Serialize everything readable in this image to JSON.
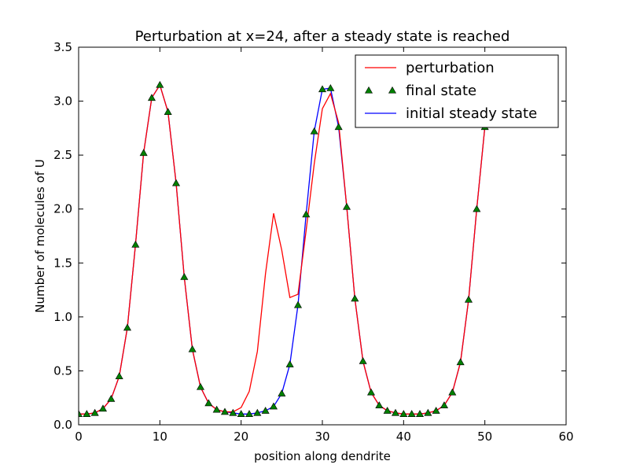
{
  "chart_data": {
    "type": "line",
    "title": "Perturbation at x=24, after a steady state is reached",
    "xlabel": "position along dendrite",
    "ylabel": "Number of molecules of U",
    "xlim": [
      0,
      60
    ],
    "ylim": [
      0.0,
      3.5
    ],
    "x_ticks": [
      "0",
      "10",
      "20",
      "30",
      "40",
      "50",
      "60"
    ],
    "y_ticks": [
      "0.0",
      "0.5",
      "1.0",
      "1.5",
      "2.0",
      "2.5",
      "3.0",
      "3.5"
    ],
    "grid": false,
    "legend_position": "top-right",
    "x": [
      0,
      1,
      2,
      3,
      4,
      5,
      6,
      7,
      8,
      9,
      10,
      11,
      12,
      13,
      14,
      15,
      16,
      17,
      18,
      19,
      20,
      21,
      22,
      23,
      24,
      25,
      26,
      27,
      28,
      29,
      30,
      31,
      32,
      33,
      34,
      35,
      36,
      37,
      38,
      39,
      40,
      41,
      42,
      43,
      44,
      45,
      46,
      47,
      48,
      49,
      50
    ],
    "series": [
      {
        "name": "perturbation",
        "style": "line",
        "color": "#ff0000",
        "values": [
          0.1,
          0.1,
          0.11,
          0.15,
          0.24,
          0.45,
          0.9,
          1.67,
          2.52,
          3.03,
          3.15,
          2.9,
          2.24,
          1.37,
          0.7,
          0.35,
          0.2,
          0.14,
          0.12,
          0.12,
          0.16,
          0.31,
          0.68,
          1.4,
          1.96,
          1.62,
          1.18,
          1.21,
          1.8,
          2.42,
          2.93,
          3.07,
          2.8,
          2.02,
          1.17,
          0.59,
          0.3,
          0.18,
          0.13,
          0.11,
          0.1,
          0.1,
          0.1,
          0.11,
          0.13,
          0.18,
          0.3,
          0.58,
          1.16,
          2.0,
          2.76
        ]
      },
      {
        "name": "final state",
        "style": "markers",
        "color": "#008000",
        "values": [
          0.1,
          0.1,
          0.11,
          0.15,
          0.24,
          0.45,
          0.9,
          1.67,
          2.52,
          3.03,
          3.15,
          2.9,
          2.24,
          1.37,
          0.7,
          0.35,
          0.2,
          0.14,
          0.12,
          0.11,
          0.1,
          0.1,
          0.11,
          0.13,
          0.17,
          0.29,
          0.56,
          1.11,
          1.95,
          2.72,
          3.11,
          3.12,
          2.76,
          2.02,
          1.17,
          0.59,
          0.3,
          0.18,
          0.13,
          0.11,
          0.1,
          0.1,
          0.1,
          0.11,
          0.13,
          0.18,
          0.3,
          0.58,
          1.16,
          2.0,
          2.76
        ]
      },
      {
        "name": "initial steady state",
        "style": "line",
        "color": "#0000ff",
        "values": [
          0.1,
          0.1,
          0.11,
          0.15,
          0.24,
          0.45,
          0.9,
          1.67,
          2.52,
          3.03,
          3.15,
          2.9,
          2.24,
          1.37,
          0.7,
          0.35,
          0.2,
          0.14,
          0.12,
          0.11,
          0.1,
          0.1,
          0.11,
          0.13,
          0.17,
          0.29,
          0.56,
          1.11,
          1.95,
          2.72,
          3.11,
          3.12,
          2.76,
          2.02,
          1.17,
          0.59,
          0.3,
          0.18,
          0.13,
          0.11,
          0.1,
          0.1,
          0.1,
          0.11,
          0.13,
          0.18,
          0.3,
          0.58,
          1.16,
          2.0,
          2.76
        ]
      }
    ]
  }
}
